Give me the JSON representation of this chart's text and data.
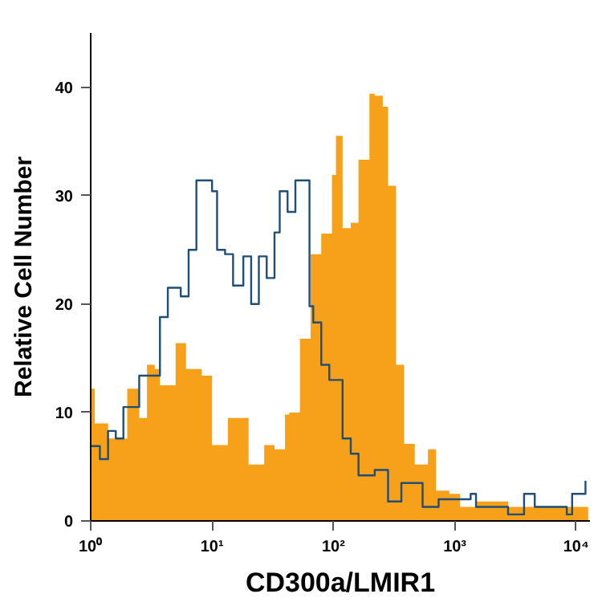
{
  "chart_data": {
    "type": "area",
    "xlabel": "CD300a/LMIR1",
    "ylabel": "Relative Cell Number",
    "log": "x",
    "xlim": [
      1,
      13000
    ],
    "xticks": [
      {
        "value": 1,
        "label": "10⁰"
      },
      {
        "value": 10,
        "label": "10¹"
      },
      {
        "value": 100,
        "label": "10²"
      },
      {
        "value": 1000,
        "label": "10³"
      },
      {
        "value": 10000,
        "label": "10⁴"
      }
    ],
    "ylim": [
      0,
      45
    ],
    "yticks": [
      0,
      10,
      20,
      30,
      40
    ],
    "grid": false,
    "series": [
      {
        "color": "#f7a11a",
        "x": [
          1,
          1.08,
          1.39,
          2.0,
          2.51,
          2.91,
          3.37,
          3.72,
          5.01,
          6.1,
          8.2,
          10,
          13.5,
          20,
          26.9,
          32.7,
          39.9,
          43.3,
          53,
          64.9,
          79.4,
          97.3,
          105,
          119,
          139,
          161,
          198,
          219,
          255,
          282,
          328,
          382,
          468,
          601,
          700,
          902,
          1104,
          1496,
          2748,
          4560,
          8375,
          12560
        ],
        "values": [
          12.2,
          9,
          7.6,
          12.2,
          9.5,
          14.4,
          14,
          12.5,
          16.4,
          14,
          13.4,
          7,
          9.5,
          5.2,
          7,
          6.6,
          9.8,
          10,
          16.8,
          24.6,
          26.5,
          31.9,
          35.5,
          27,
          27.5,
          33.3,
          39.4,
          39.2,
          38.2,
          30.9,
          14.4,
          7.1,
          5.2,
          6.6,
          2.8,
          2.5,
          1.3,
          1.8,
          1.3,
          1.3,
          1.3,
          1.5
        ]
      },
      {
        "type": "step",
        "color": "#1f4e79",
        "x": [
          1,
          1.19,
          1.39,
          1.61,
          1.86,
          2.51,
          3.05,
          3.72,
          4.32,
          5.52,
          6.41,
          7.43,
          8.63,
          10,
          11,
          12.8,
          14.9,
          18.1,
          21,
          24.3,
          28.2,
          32.7,
          36.1,
          41.9,
          48.6,
          55.7,
          63.5,
          68.2,
          79.4,
          92.5,
          119,
          139,
          161,
          219,
          282,
          363,
          543,
          736,
          1352,
          1496,
          2748,
          3724,
          4560,
          8375,
          9268,
          11940
        ],
        "values": [
          6.9,
          5.7,
          8.3,
          7.6,
          10.5,
          13.4,
          13.4,
          18.8,
          21.5,
          20.7,
          25,
          31.4,
          31.4,
          30.4,
          25,
          24.6,
          21.7,
          24.4,
          20,
          24.4,
          22.4,
          26.6,
          30.4,
          28.5,
          31.4,
          31.4,
          19.8,
          18.3,
          14.4,
          13,
          7.6,
          6.2,
          4.2,
          4.7,
          1.8,
          3.5,
          1.3,
          2.0,
          2.5,
          1.3,
          0.6,
          2.5,
          1.3,
          0.6,
          2.5,
          3.7
        ]
      }
    ]
  }
}
